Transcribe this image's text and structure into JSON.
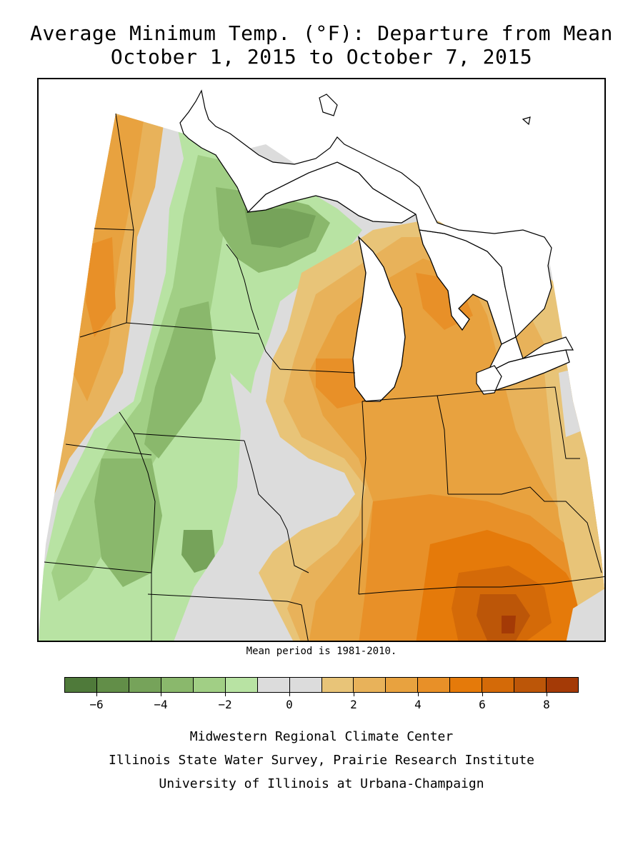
{
  "title_line1": "Average Minimum Temp. (°F): Departure from Mean",
  "title_line2": "October 1, 2015 to October 7, 2015",
  "mean_note": "Mean period is 1981-2010.",
  "legend": {
    "colors": [
      "#4f7a3a",
      "#628e48",
      "#76a35a",
      "#8ab86c",
      "#a1cf85",
      "#b8e3a3",
      "#dcdcdc",
      "#dcdcdc",
      "#e8c478",
      "#e8b25a",
      "#e8a23f",
      "#e89028",
      "#e57a0a",
      "#d46a08",
      "#bc5608",
      "#a43a06"
    ],
    "tick_labels": [
      "-6",
      "-4",
      "-2",
      "0",
      "2",
      "4",
      "6",
      "8"
    ]
  },
  "credits": [
    "Midwestern Regional Climate Center",
    "Illinois State Water Survey, Prairie Research Institute",
    "University of Illinois at Urbana-Champaign"
  ]
}
